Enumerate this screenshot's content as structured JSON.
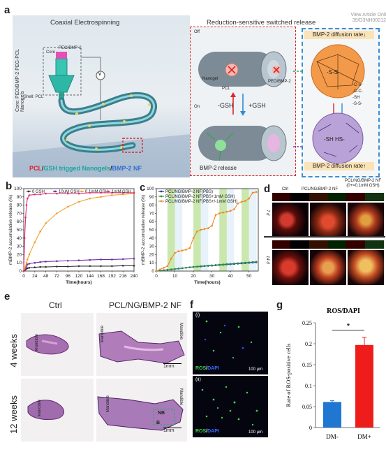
{
  "watermark": {
    "line1": "View Article Onli",
    "line2": "39/D3NH00212"
  },
  "panel_a": {
    "label": "a",
    "left_title": "Coaxial Electrospinning",
    "right_title": "Reduction-sensitive switched release",
    "shell_label": "Shell: PCL",
    "core_label": "Core: PEO/BMP-2 PEG-PCL Nanogels",
    "core_tag": "Core",
    "core_tag2": "PEO/BMP-2",
    "voltage": "V",
    "legend_pcl": "PCL",
    "legend_sep1": "/",
    "legend_gsh": "GSH trigged Nanogels",
    "legend_sep2": "/",
    "legend_bmp": "BMP-2 NF",
    "off_label": "Off",
    "on_label": "On",
    "nanogel_label": "Nanogel",
    "pcl_label": "PCL",
    "peo_label": "PEO/BMP-2",
    "minus_gsh": "-GSH",
    "plus_gsh": "+GSH",
    "release_label": "BMP-2 release",
    "rate_down": "BMP-2 diffusion rate↓",
    "rate_up": "BMP-2 diffusion rate↑",
    "ss_label": "-S-S-",
    "sh_label": "-SH HS-",
    "key": [
      "-C-S-",
      "-C-C-",
      "-SH",
      "-S-S-"
    ]
  },
  "panel_b": {
    "label": "b",
    "ylabel": "rhBMP-2 accumulative release (%)",
    "xlabel": "Time(hours)"
  },
  "panel_c": {
    "label": "c",
    "ylabel": "rhBMP-2 accumulative release (%)",
    "xlabel": "Time(hours)"
  },
  "panel_d": {
    "label": "d",
    "col1": "Ctrl",
    "col2": "PCL/NG/BMP-2 NF",
    "col3": "PCL/NG/BMP-2 NF (0+=0.1mM GSH)",
    "row1": "7 d",
    "row2": "14 d"
  },
  "panel_e": {
    "label": "e",
    "col1": "Ctrl",
    "col2": "PCL/NG/BMP-2 NF",
    "row1": "4 weeks",
    "row2": "12 weeks",
    "mandible": "Mandible",
    "scale": "1mm",
    "nb": "NB",
    "b": "B"
  },
  "panel_f": {
    "label": "f",
    "i": "(i)",
    "ii": "(ii)",
    "ros": "ROS",
    "slash": "/",
    "dapi": "DAPI",
    "scale": "100 μm"
  },
  "chart_data": [
    {
      "type": "line",
      "panel": "b",
      "xlabel": "Time(hours)",
      "ylabel": "rhBMP-2 accumulative release (%)",
      "xlim": [
        0,
        240
      ],
      "ylim": [
        0,
        100
      ],
      "xticks": [
        0,
        24,
        48,
        72,
        96,
        120,
        144,
        168,
        192,
        216,
        240
      ],
      "yticks": [
        0,
        10,
        20,
        30,
        40,
        50,
        60,
        70,
        80,
        90,
        100
      ],
      "legend_position": "top",
      "x": [
        0,
        2,
        4,
        6,
        8,
        12,
        24,
        36,
        48,
        72,
        96,
        120,
        144,
        168,
        192,
        216,
        240
      ],
      "series": [
        {
          "name": "0 GSH",
          "color": "#333333",
          "values": [
            0,
            1,
            2,
            3,
            3.5,
            4,
            4.5,
            5,
            5,
            5.5,
            5.5,
            6,
            6,
            6,
            6,
            6.5,
            6.5
          ]
        },
        {
          "name": "10uM GSH",
          "color": "#7030a0",
          "values": [
            0,
            2,
            4,
            6,
            8,
            9,
            10,
            11,
            11.5,
            12,
            12.5,
            13,
            13.5,
            14,
            14,
            14.5,
            15
          ]
        },
        {
          "name": "0.1mM GSH",
          "color": "#f0a030",
          "values": [
            0,
            3,
            6,
            10,
            14,
            20,
            35,
            48,
            58,
            70,
            78,
            84,
            88,
            90,
            92,
            93,
            94
          ]
        },
        {
          "name": "1mM GSH",
          "color": "#e0307a",
          "values": [
            0,
            40,
            65,
            80,
            88,
            92,
            93,
            93,
            94,
            94,
            94,
            94,
            95,
            95,
            95,
            95,
            95
          ]
        }
      ]
    },
    {
      "type": "line",
      "panel": "c",
      "xlabel": "Time(hours)",
      "ylabel": "rhBMP-2 accumulative release (%)",
      "xlim": [
        0,
        55
      ],
      "ylim": [
        0,
        100
      ],
      "xticks": [
        0,
        10,
        20,
        30,
        40,
        50
      ],
      "yticks": [
        0,
        10,
        20,
        30,
        40,
        50,
        60,
        70,
        80,
        90,
        100
      ],
      "legend_position": "top-left",
      "x": [
        0,
        2,
        4,
        6,
        8,
        10,
        12,
        14,
        16,
        18,
        20,
        22,
        24,
        26,
        28,
        30,
        32,
        34,
        36,
        38,
        40,
        42,
        44,
        46,
        48,
        50,
        52,
        54
      ],
      "series": [
        {
          "name": "PCL/NG/BMP-2 NF(PBS)",
          "color": "#1f3c88",
          "values": [
            0,
            0.5,
            1,
            1.5,
            2,
            2.5,
            3,
            3.5,
            4,
            4.5,
            5,
            5.3,
            5.6,
            6,
            6.3,
            6.6,
            7,
            7.3,
            7.6,
            8,
            8.3,
            8.6,
            9,
            9.3,
            9.6,
            10,
            10.3,
            10.6
          ]
        },
        {
          "name": "PCL/NG/BMP-2 NF(PBS+1mM GSH)",
          "color": "#2e8b57",
          "values": [
            0,
            0.5,
            1,
            1.5,
            2,
            2.5,
            3,
            3.5,
            4,
            4.5,
            5,
            5.5,
            6,
            6.3,
            6.6,
            7,
            7.4,
            7.8,
            8.1,
            8.5,
            8.8,
            9.2,
            9.5,
            9.9,
            10.2,
            10.6,
            11,
            11.3
          ]
        },
        {
          "name": "PCL/NG/BMP-2 NF(PBS+/-1mM GSH)",
          "color": "#f08a24",
          "values": [
            0,
            2,
            4,
            6,
            15,
            22,
            24,
            25,
            26,
            28,
            40,
            48,
            50,
            51,
            52,
            55,
            68,
            70,
            71,
            72,
            73,
            75,
            82,
            84,
            85,
            88,
            95,
            96
          ]
        }
      ]
    },
    {
      "type": "bar",
      "panel": "g",
      "title": "ROS/DAPI",
      "xlabel": "",
      "ylabel": "Rate of ROS-positive cells",
      "categories": [
        "DM-",
        "DM+"
      ],
      "values": [
        0.061,
        0.197
      ],
      "errors": [
        0.003,
        0.018
      ],
      "colors": [
        "#1f77d2",
        "#ef1c1c"
      ],
      "ylim": [
        0,
        0.25
      ],
      "yticks": [
        0,
        0.05,
        0.1,
        0.15,
        0.2,
        0.25
      ],
      "ytick_labels": [
        "0",
        "0.05",
        "0.1",
        "0.15",
        "0.2",
        "0.25"
      ],
      "significance": "*",
      "label": "g"
    }
  ]
}
